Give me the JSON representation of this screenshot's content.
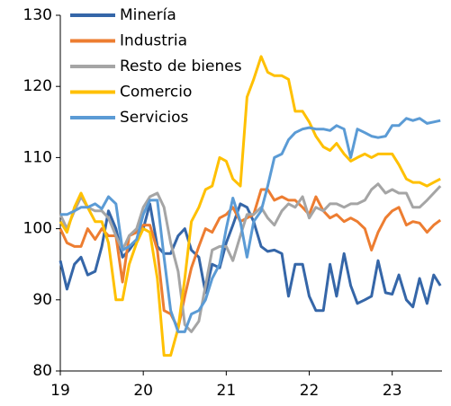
{
  "chart_data": {
    "type": "line",
    "x": [
      19,
      19.08,
      19.17,
      19.25,
      19.33,
      19.42,
      19.5,
      19.58,
      19.67,
      19.75,
      19.83,
      19.92,
      20,
      20.08,
      20.17,
      20.25,
      20.33,
      20.42,
      20.5,
      20.58,
      20.67,
      20.75,
      20.83,
      20.92,
      21,
      21.08,
      21.17,
      21.25,
      21.33,
      21.42,
      21.5,
      21.58,
      21.67,
      21.75,
      21.83,
      21.92,
      22,
      22.08,
      22.17,
      22.25,
      22.33,
      22.42,
      22.5,
      22.58,
      22.67,
      22.75,
      22.83,
      22.92,
      23,
      23.08,
      23.17,
      23.25,
      23.33,
      23.42,
      23.5,
      23.58
    ],
    "series": [
      {
        "name": "Minería",
        "color": "#3566a8",
        "values": [
          95.5,
          91.5,
          95,
          96,
          93.5,
          94,
          97.5,
          102.5,
          100,
          96,
          97,
          98.5,
          100,
          103.5,
          97.5,
          96.5,
          96.5,
          99,
          100,
          97,
          96,
          91,
          95,
          94.5,
          98,
          100.5,
          103.5,
          103,
          101,
          97.5,
          96.8,
          97,
          96.5,
          90.5,
          95,
          95,
          90.5,
          88.5,
          88.5,
          95,
          90.5,
          96.5,
          92,
          89.5,
          90,
          90.5,
          95.5,
          91,
          90.8,
          93.5,
          90,
          89,
          93,
          89.5,
          93.5,
          92
        ]
      },
      {
        "name": "Industria",
        "color": "#ed7d31",
        "values": [
          100,
          98,
          97.5,
          97.5,
          100,
          98.5,
          100,
          99,
          99,
          92.5,
          99,
          99.5,
          100.5,
          100.5,
          97,
          88.5,
          88,
          86,
          90.5,
          94.5,
          97.5,
          100,
          99.5,
          101.5,
          102,
          103,
          101,
          101.5,
          102,
          105.5,
          105.5,
          104,
          104.5,
          104,
          104,
          103,
          102,
          104.5,
          102.5,
          101.5,
          102,
          101,
          101.5,
          101,
          100,
          97,
          99.5,
          101.5,
          102.5,
          103,
          100.5,
          101,
          100.8,
          99.5,
          100.5,
          101.2
        ]
      },
      {
        "name": "Resto de bienes",
        "color": "#a5a5a5",
        "values": [
          102,
          100,
          102.5,
          104.5,
          103,
          102.5,
          102.5,
          101.5,
          99,
          97,
          99,
          100,
          103,
          104.5,
          105,
          103,
          98,
          94,
          86.5,
          85.5,
          87,
          92,
          97,
          97.5,
          97.5,
          95.5,
          99,
          102,
          102,
          103,
          101.5,
          100.5,
          102.5,
          103.5,
          103,
          104.5,
          101.5,
          103,
          102.5,
          103.5,
          103.5,
          103,
          103.5,
          103.5,
          104,
          105.5,
          106.3,
          105,
          105.5,
          105,
          105,
          103,
          103,
          104,
          105,
          106
        ]
      },
      {
        "name": "Comercio",
        "color": "#ffc000",
        "values": [
          101,
          99.5,
          103,
          105,
          103,
          101,
          101,
          98,
          90,
          90,
          95,
          98,
          100,
          99.5,
          93,
          82.2,
          82.2,
          86,
          93,
          101,
          103,
          105.5,
          106,
          110,
          109.5,
          107,
          106,
          118.5,
          121,
          124.2,
          122,
          121.5,
          121.5,
          121,
          116.5,
          116.5,
          115,
          113,
          111.5,
          111,
          112,
          110.5,
          109.5,
          110,
          110.5,
          110,
          110.5,
          110.5,
          110.5,
          109,
          107,
          106.5,
          106.5,
          106,
          106.5,
          107
        ]
      },
      {
        "name": "Servicios",
        "color": "#5b9bd5",
        "values": [
          102,
          102,
          102.5,
          103,
          103,
          103.5,
          102.8,
          104.5,
          103.5,
          97,
          97.5,
          98.5,
          102,
          104,
          104,
          96,
          88.5,
          85.5,
          85.5,
          88,
          88.5,
          90,
          93,
          95,
          100,
          104.3,
          101,
          96,
          101,
          102.5,
          106,
          110,
          110.5,
          112.5,
          113.5,
          114,
          114.2,
          114,
          114,
          113.8,
          114.5,
          114,
          110,
          114,
          113.5,
          113,
          112.8,
          113,
          114.5,
          114.5,
          115.5,
          115.2,
          115.5,
          114.8,
          115,
          115.2
        ]
      }
    ],
    "xlim": [
      19,
      23.6
    ],
    "xticks": [
      19,
      20,
      21,
      22,
      23
    ],
    "ylim": [
      80,
      130
    ],
    "yticks": [
      80,
      90,
      100,
      110,
      120,
      130
    ],
    "legend": "top-left"
  }
}
